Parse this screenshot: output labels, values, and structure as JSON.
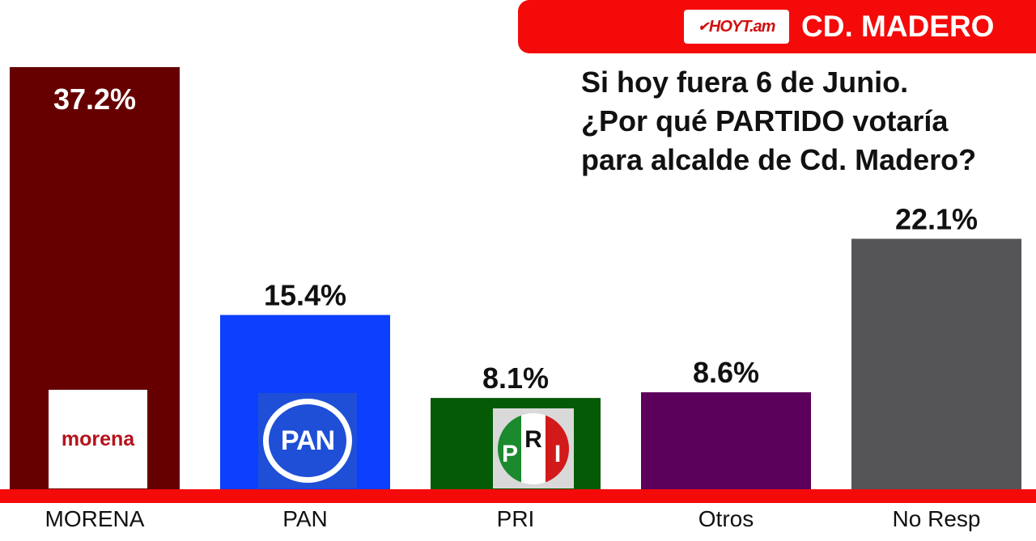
{
  "header": {
    "brand": "HOYT.am",
    "location": "CD. MADERO"
  },
  "question": "Si hoy fuera 6 de Junio.\n¿Por qué PARTIDO votaría\npara alcalde de Cd. Madero?",
  "logos": {
    "morena": "morena",
    "pan": "PAN",
    "pri": [
      "P",
      "R",
      "I"
    ]
  },
  "colors": {
    "banner": "#f50a0a",
    "baseline": "#f50a0a"
  },
  "chart_data": {
    "type": "bar",
    "categories": [
      "MORENA",
      "PAN",
      "PRI",
      "Otros",
      "No Resp"
    ],
    "values": [
      37.2,
      15.4,
      8.1,
      8.6,
      22.1
    ],
    "value_labels": [
      "37.2%",
      "15.4%",
      "8.1%",
      "8.6%",
      "22.1%"
    ],
    "colors": [
      "#660000",
      "#0d3fff",
      "#055a05",
      "#5b005b",
      "#555457"
    ],
    "ylim": [
      0,
      40
    ]
  }
}
